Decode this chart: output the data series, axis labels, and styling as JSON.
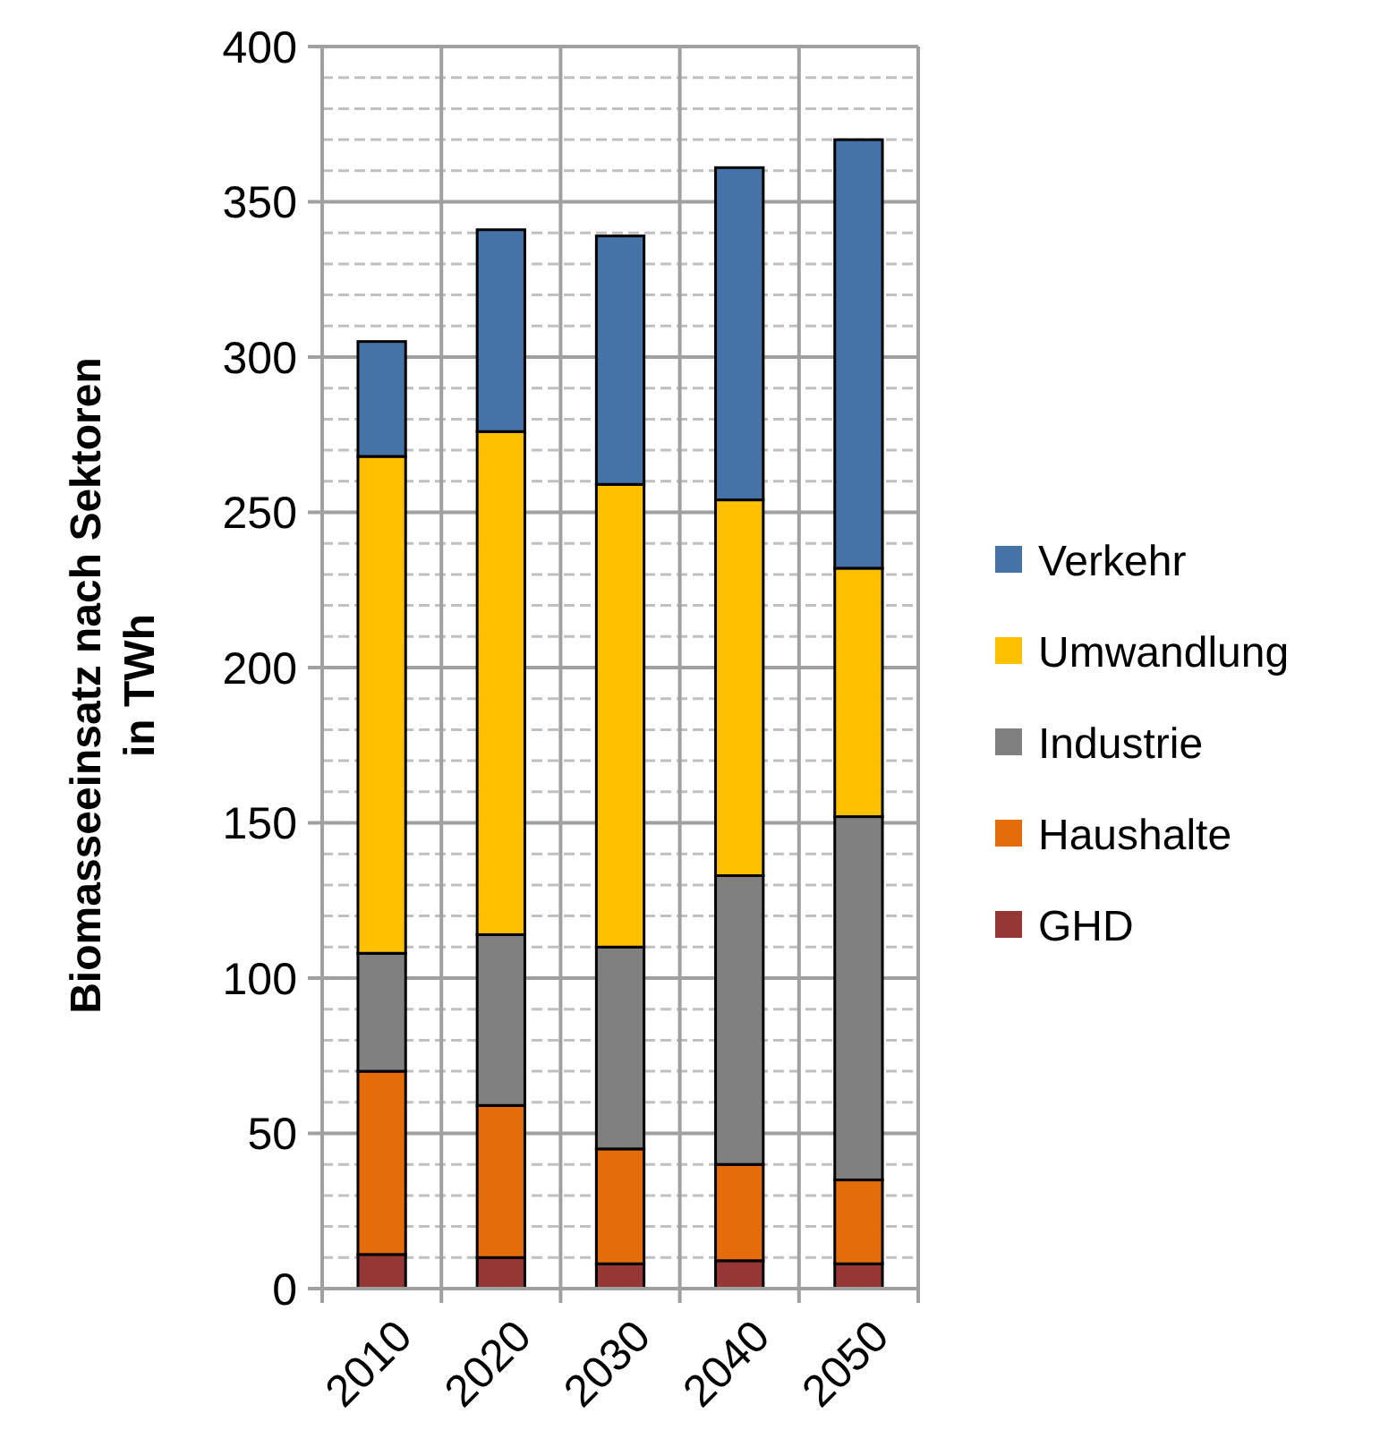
{
  "chart_data": {
    "type": "bar",
    "stacked": true,
    "ylabel": "Biomasseeinsatz nach Sektoren\nin TWh",
    "categories": [
      "2010",
      "2020",
      "2030",
      "2040",
      "2050"
    ],
    "series": [
      {
        "name": "GHD",
        "color": "#953735",
        "values": [
          11,
          10,
          8,
          9,
          8
        ]
      },
      {
        "name": "Haushalte",
        "color": "#e46c0a",
        "values": [
          59,
          49,
          37,
          31,
          27
        ]
      },
      {
        "name": "Industrie",
        "color": "#808080",
        "values": [
          38,
          55,
          65,
          93,
          117
        ]
      },
      {
        "name": "Umwandlung",
        "color": "#ffc000",
        "values": [
          160,
          162,
          149,
          121,
          80
        ]
      },
      {
        "name": "Verkehr",
        "color": "#4572a7",
        "values": [
          37,
          65,
          80,
          107,
          138
        ]
      }
    ],
    "ylim": [
      0,
      400
    ],
    "yticks": [
      0,
      {
        "value": 10,
        "label": null
      },
      {
        "value": 20,
        "label": null
      },
      {
        "value": 30,
        "label": null
      },
      {
        "value": 40,
        "label": null
      },
      50,
      {
        "value": 60,
        "label": null
      },
      {
        "value": 70,
        "label": null
      },
      {
        "value": 80,
        "label": null
      },
      {
        "value": 90,
        "label": null
      },
      100,
      {
        "value": 110,
        "label": null
      },
      {
        "value": 120,
        "label": null
      },
      {
        "value": 130,
        "label": null
      },
      {
        "value": 140,
        "label": null
      },
      150,
      {
        "value": 160,
        "label": null
      },
      {
        "value": 170,
        "label": null
      },
      {
        "value": 180,
        "label": null
      },
      {
        "value": 190,
        "label": null
      },
      200,
      {
        "value": 210,
        "label": null
      },
      {
        "value": 220,
        "label": null
      },
      {
        "value": 230,
        "label": null
      },
      {
        "value": 240,
        "label": null
      },
      250,
      {
        "value": 260,
        "label": null
      },
      {
        "value": 270,
        "label": null
      },
      {
        "value": 280,
        "label": null
      },
      {
        "value": 290,
        "label": null
      },
      300,
      {
        "value": 310,
        "label": null
      },
      {
        "value": 320,
        "label": null
      },
      {
        "value": 330,
        "label": null
      },
      {
        "value": 340,
        "label": null
      },
      350,
      {
        "value": 360,
        "label": null
      },
      {
        "value": 370,
        "label": null
      },
      {
        "value": 380,
        "label": null
      },
      {
        "value": 390,
        "label": null
      },
      400
    ],
    "grid": true,
    "legend": "right"
  }
}
